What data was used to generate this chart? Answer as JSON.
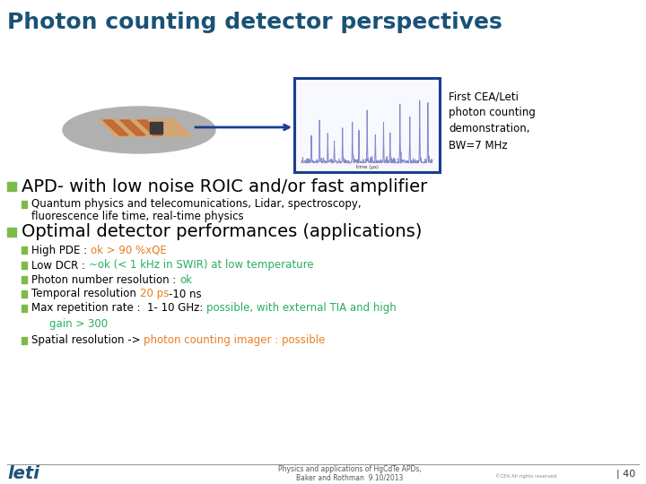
{
  "title": "Photon counting detector perspectives",
  "title_color": "#1a5276",
  "title_fontsize": 18,
  "bg_color": "#ffffff",
  "bullet_color": "#7dba4a",
  "bullet1_text": "APD- with low noise ROIC and/or fast amplifier",
  "bullet1_size": 14,
  "sub_bullet1_line1": "Quantum physics and telecomunications, Lidar, spectroscopy,",
  "sub_bullet1_line2": "fluorescence life time, real-time physics",
  "bullet2_text": "Optimal detector performances (applications)",
  "bullet2_size": 14,
  "sub_bullets": [
    {
      "parts": [
        {
          "text": "High PDE : ",
          "color": "#000000"
        },
        {
          "text": "ok > 90 %xQE",
          "color": "#e67e22"
        }
      ]
    },
    {
      "parts": [
        {
          "text": "Low DCR : ",
          "color": "#000000"
        },
        {
          "text": "~ok (< 1 kHz in SWIR) at low temperature",
          "color": "#27ae60"
        }
      ]
    },
    {
      "parts": [
        {
          "text": "Photon number resolution : ",
          "color": "#000000"
        },
        {
          "text": "ok",
          "color": "#27ae60"
        }
      ]
    },
    {
      "parts": [
        {
          "text": "Temporal resolution ",
          "color": "#000000"
        },
        {
          "text": "20 ps",
          "color": "#e67e22"
        },
        {
          "text": "-10 ns",
          "color": "#000000"
        }
      ]
    },
    {
      "parts": [
        {
          "text": "Max repetition rate :  1- 10 GHz: ",
          "color": "#000000"
        },
        {
          "text": "possible, with external TIA and high",
          "color": "#27ae60"
        }
      ]
    },
    {
      "parts": [
        {
          "text": "gain > 300",
          "color": "#27ae60"
        }
      ]
    },
    {
      "parts": [
        {
          "text": "Spatial resolution -> ",
          "color": "#000000"
        },
        {
          "text": "photon counting imager : possible",
          "color": "#e67e22"
        }
      ]
    }
  ],
  "sub_bullet_indents": [
    35,
    35,
    35,
    35,
    35,
    55,
    35
  ],
  "annotation_text": "First CEA/Leti\nphoton counting\ndemonstration,\nBW=7 MHz",
  "footer_left": "Physics and applications of HgCdTe APDs,\n       Baker and Rothman  9.10/2013",
  "footer_right": "| 40",
  "leti_color": "#1a5276",
  "footer_color": "#555555",
  "sub_font_size": 8.5,
  "sub_bullet_color": "#7dba4a"
}
